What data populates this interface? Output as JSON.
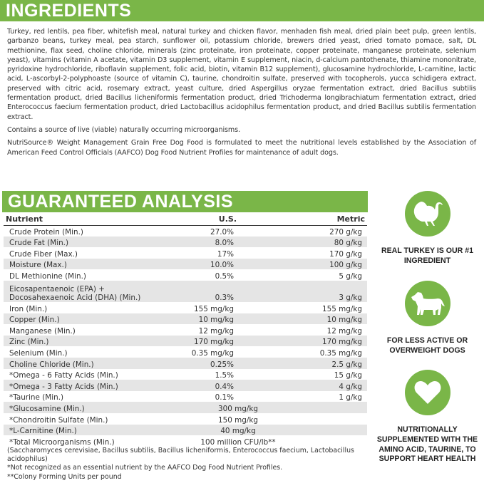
{
  "ingredients": {
    "title": "INGREDIENTS",
    "text": "Turkey, red lentils, pea fiber, whitefish meal, natural turkey and chicken flavor, menhaden fish meal, dried plain beet pulp, green lentils, garbanzo beans, turkey meal, pea starch, sunflower oil, potassium chloride, brewers dried yeast, dried tomato pomace, salt, DL methionine, flax seed, choline chloride, minerals (zinc proteinate, iron proteinate, copper proteinate, manganese proteinate, selenium yeast), vitamins (vitamin A acetate, vitamin D3 supplement, vitamin E supplement, niacin, d-calcium pantothenate, thiamine mononitrate, pyridoxine hydrochloride, riboflavin supplement, folic acid, biotin, vitamin B12 supplement), glucosamine hydrochloride, L-carnitine, lactic acid, L-ascorbyl-2-polyphoaste (source of vitamin C), taurine, chondroitin sulfate, preserved with tocopherols, yucca schidigera extract, preserved with citric acid, rosemary extract, yeast culture, dried Aspergillus oryzae fermentation extract, dried Bacillus subtilis fermentation product, dried Bacillus licheniformis fermentation product, dried Trichoderma longibrachiatum fermentation extract, dried Enterococcus faecium fermentation product, dried Lactobacillus acidophilus fermentation product, and dried Bacillus subtilis fermentation extract.",
    "probiotic_note": "Contains a source of live (viable) naturally occurring microorganisms.",
    "aafco_statement": "NutriSource® Weight Management Grain Free Dog Food is formulated to meet the nutritional levels established by the Association of American Feed Control Officials (AAFCO) Dog Food Nutrient Profiles for maintenance of adult dogs."
  },
  "analysis": {
    "title": "GUARANTEED ANALYSIS",
    "headers": [
      "Nutrient",
      "U.S.",
      "Metric"
    ],
    "rows": [
      {
        "nutrient": "Crude Protein (Min.)",
        "us": "27.0%",
        "metric": "270 g/kg"
      },
      {
        "nutrient": "Crude Fat (Min.)",
        "us": "8.0%",
        "metric": "80 g/kg"
      },
      {
        "nutrient": "Crude Fiber (Max.)",
        "us": "17%",
        "metric": "170 g/kg"
      },
      {
        "nutrient": "Moisture (Max.)",
        "us": "10.0%",
        "metric": "100 g/kg"
      },
      {
        "nutrient": "DL Methionine (Min.)",
        "us": "0.5%",
        "metric": "5 g/kg"
      },
      {
        "nutrient": "Eicosapentaenoic (EPA) + Docosahexaenoic Acid (DHA) (Min.)",
        "us": "0.3%",
        "metric": "3 g/kg"
      },
      {
        "nutrient": "Iron (Min.)",
        "us": "155 mg/kg",
        "metric": "155 mg/kg"
      },
      {
        "nutrient": "Copper (Min.)",
        "us": "10 mg/kg",
        "metric": "10 mg/kg"
      },
      {
        "nutrient": "Manganese (Min.)",
        "us": "12 mg/kg",
        "metric": "12 mg/kg"
      },
      {
        "nutrient": "Zinc (Min.)",
        "us": "170 mg/kg",
        "metric": "170 mg/kg"
      },
      {
        "nutrient": "Selenium (Min.)",
        "us": "0.35 mg/kg",
        "metric": "0.35 mg/kg"
      },
      {
        "nutrient": "Choline Chloride (Min.)",
        "us": "0.25%",
        "metric": "2.5 g/kg"
      },
      {
        "nutrient": "*Omega - 6 Fatty Acids (Min.)",
        "us": "1.5%",
        "metric": "15 g/kg"
      },
      {
        "nutrient": "*Omega - 3 Fatty Acids (Min.)",
        "us": "0.4%",
        "metric": "4 g/kg"
      },
      {
        "nutrient": "*Taurine (Min.)",
        "us": "0.1%",
        "metric": "1 g/kg"
      },
      {
        "nutrient": "*Glucosamine (Min.)",
        "value": "300 mg/kg"
      },
      {
        "nutrient": "*Chondroitin Sulfate (Min.)",
        "value": "150 mg/kg"
      },
      {
        "nutrient": "*L-Carnitine (Min.)",
        "value": "40 mg/kg"
      },
      {
        "nutrient": "*Total Microorganisms (Min.)",
        "value": "100 million CFU/lb**"
      }
    ],
    "notes": [
      "(Saccharomyces cerevisiae, Bacillus subtilis, Bacillus licheniformis, Enterococcus faecium, Lactobacillus acidophilus)",
      "*Not recognized as an essential nutrient by the AAFCO Dog Food Nutrient Profiles.",
      "**Colony Forming Units per pound"
    ]
  },
  "features": [
    {
      "icon": "turkey-icon",
      "text": "REAL TURKEY IS OUR #1 INGREDIENT"
    },
    {
      "icon": "dog-icon",
      "text": "FOR LESS ACTIVE OR OVERWEIGHT DOGS"
    },
    {
      "icon": "heart-icon",
      "text": "NUTRITIONALLY SUPPLEMENTED WITH THE AMINO ACID, TAURINE, TO SUPPORT HEART HEALTH"
    }
  ],
  "colors": {
    "brand_green": "#7ab648",
    "row_shade": "#e5e5e5"
  }
}
